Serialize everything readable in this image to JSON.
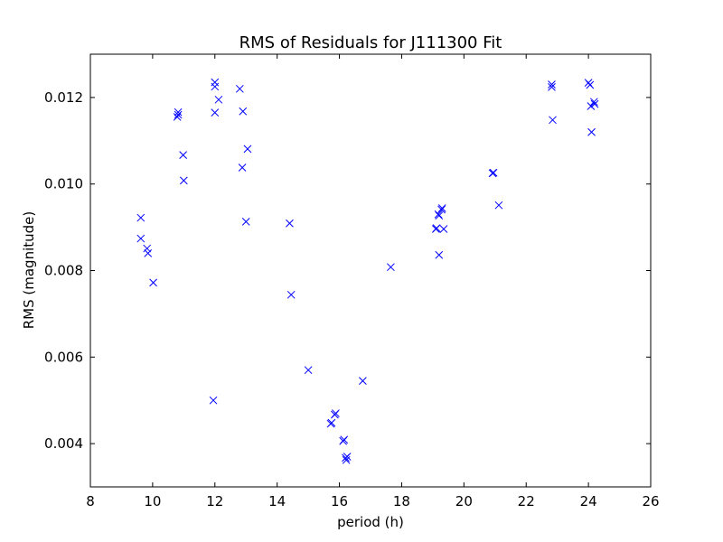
{
  "chart_data": {
    "type": "scatter",
    "title": "RMS of Residuals for J111300 Fit",
    "xlabel": "period (h)",
    "ylabel": "RMS (magnitude)",
    "xlim": [
      8,
      26
    ],
    "ylim": [
      0.003,
      0.013
    ],
    "xticks": [
      "8",
      "10",
      "12",
      "14",
      "16",
      "18",
      "20",
      "22",
      "24",
      "26"
    ],
    "yticks": [
      "0.004",
      "0.006",
      "0.008",
      "0.010",
      "0.012"
    ],
    "marker": "x",
    "color": "#0000ff",
    "grid": false,
    "series": [
      {
        "x": [
          9.62,
          9.62,
          9.82,
          9.85,
          10.02,
          10.79,
          10.82,
          10.82,
          10.98,
          11.0,
          11.95,
          12.0,
          12.0,
          12.0,
          12.12,
          12.8,
          12.88,
          12.9,
          13.0,
          13.05,
          14.4,
          14.45,
          15.0,
          15.72,
          15.75,
          15.85,
          15.88,
          16.12,
          16.15,
          16.2,
          16.22,
          16.25,
          16.75,
          17.65,
          19.1,
          19.12,
          19.18,
          19.2,
          19.2,
          19.28,
          19.3,
          19.35,
          20.92,
          20.95,
          21.12,
          22.82,
          22.82,
          22.85,
          24.0,
          24.05,
          24.08,
          24.1,
          24.18,
          24.2
        ],
        "y": [
          0.00922,
          0.00874,
          0.00851,
          0.0084,
          0.00772,
          0.01155,
          0.0116,
          0.01166,
          0.01067,
          0.01008,
          0.005,
          0.01165,
          0.01225,
          0.01235,
          0.01195,
          0.0122,
          0.01038,
          0.01168,
          0.00913,
          0.01081,
          0.00909,
          0.00744,
          0.0057,
          0.00446,
          0.00448,
          0.00467,
          0.0047,
          0.00406,
          0.00409,
          0.00367,
          0.00362,
          0.0037,
          0.00545,
          0.00808,
          0.00896,
          0.00898,
          0.0093,
          0.00927,
          0.00836,
          0.00941,
          0.00944,
          0.00896,
          0.01025,
          0.01026,
          0.00951,
          0.01224,
          0.0123,
          0.01148,
          0.01234,
          0.01229,
          0.0118,
          0.0112,
          0.0119,
          0.01185
        ]
      }
    ]
  }
}
